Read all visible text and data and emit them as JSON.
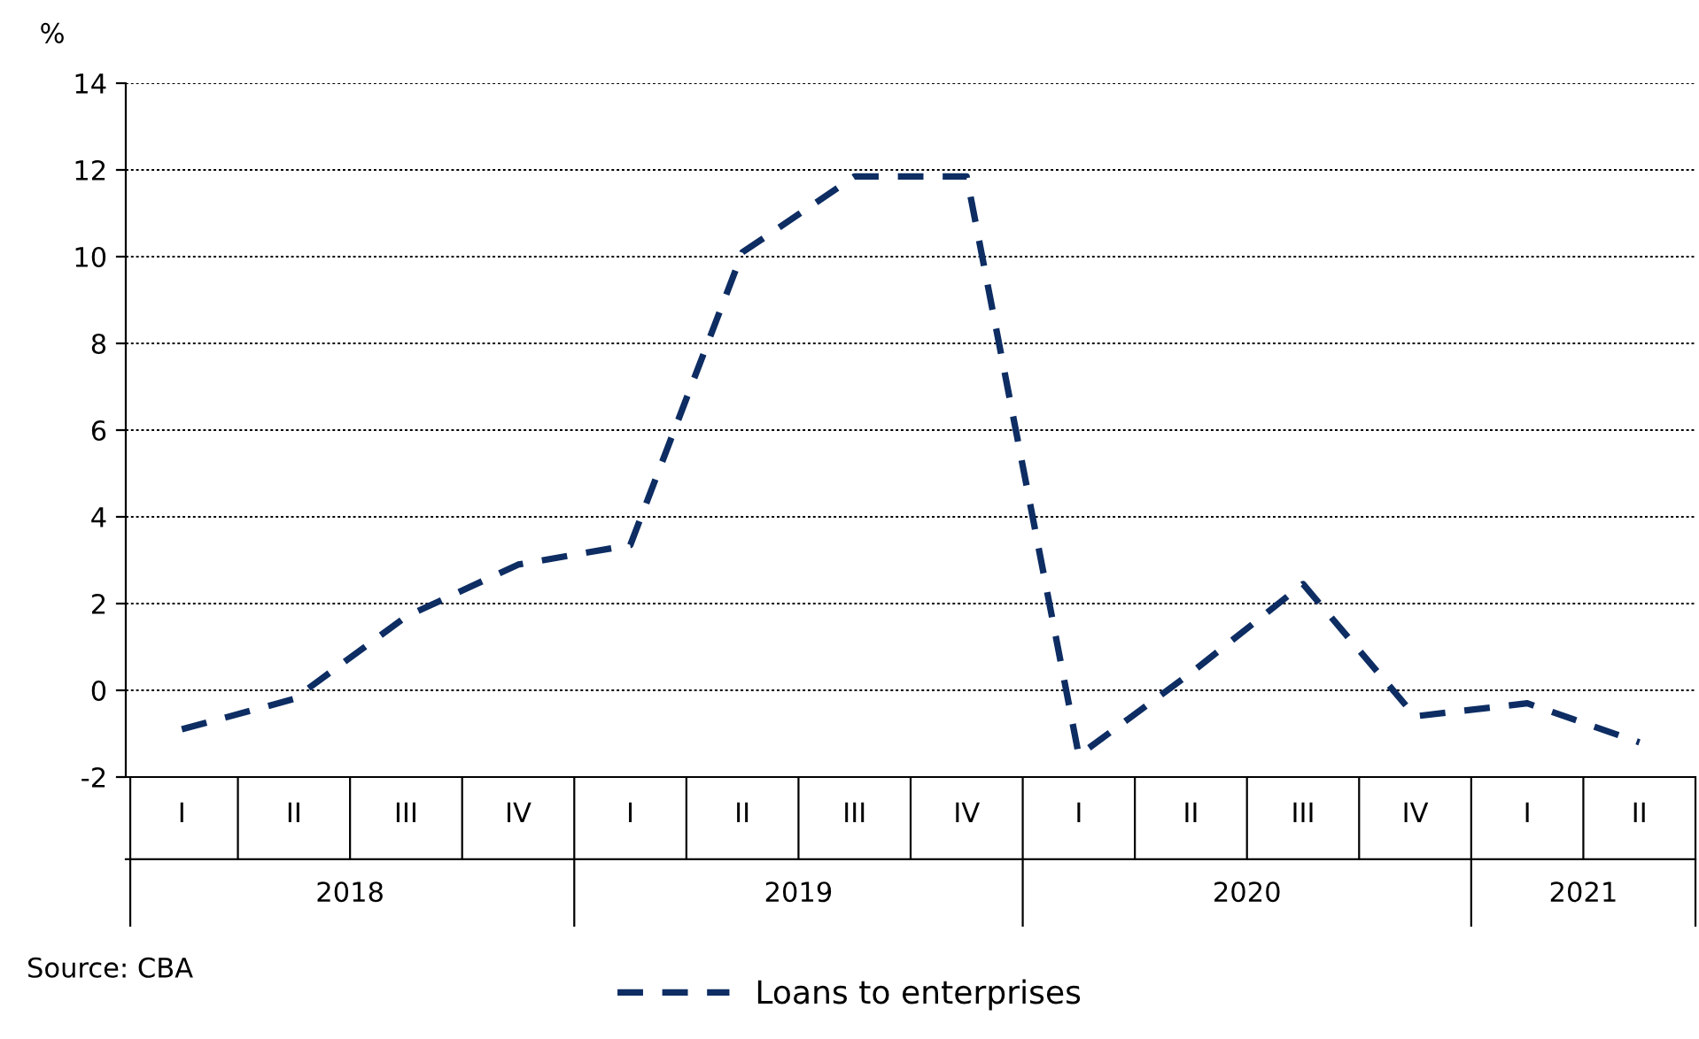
{
  "chart_data": {
    "type": "line",
    "ylabel": "%",
    "categories": [
      "I",
      "II",
      "III",
      "IV",
      "I",
      "II",
      "III",
      "IV",
      "I",
      "II",
      "III",
      "IV",
      "I",
      "II"
    ],
    "series": [
      {
        "name": "Loans to enterprises",
        "color": "#0d2d63",
        "values": [
          -0.9,
          -0.2,
          1.7,
          2.9,
          3.35,
          10.1,
          11.85,
          11.85,
          -1.5,
          0.4,
          2.45,
          -0.6,
          -0.3,
          -1.2
        ]
      }
    ],
    "ylim": [
      -2,
      14
    ],
    "yticks": [
      -2,
      0,
      2,
      4,
      6,
      8,
      10,
      12,
      14
    ],
    "grid": "y",
    "legend": "bottom",
    "line_style": "dashed",
    "marker": "none",
    "annotations": [
      "2018",
      "2019",
      "2020",
      "2021",
      "Source: CBA"
    ]
  }
}
